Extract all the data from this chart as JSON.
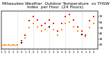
{
  "title": "Milwaukee Weather  Outdoor Temperature",
  "subtitle": "vs THSW Index  per Hour  (24 Hours)",
  "background_color": "#ffffff",
  "grid_color": "#bbbbbb",
  "temp_color": "#ff8800",
  "thsw_color": "#ff0000",
  "black_color": "#000000",
  "ylim": [
    20,
    88
  ],
  "xlim": [
    0,
    24
  ],
  "ytick_vals": [
    78,
    68,
    58,
    48,
    38,
    28
  ],
  "dashed_x": [
    4,
    8,
    12,
    16,
    20,
    24
  ],
  "flat_line_x": [
    0,
    4.0
  ],
  "flat_line_y": [
    28,
    28
  ],
  "temp_data_x": [
    0,
    1,
    2,
    3,
    4,
    5,
    6,
    7,
    8,
    9,
    10,
    11,
    12,
    13,
    14,
    15,
    16,
    17,
    18,
    19,
    20,
    21,
    22,
    23
  ],
  "temp_data_y": [
    28,
    28,
    28,
    28,
    28,
    32,
    40,
    58,
    65,
    60,
    52,
    55,
    60,
    55,
    45,
    55,
    65,
    68,
    60,
    52,
    46,
    42,
    58,
    65
  ],
  "thsw_data_x": [
    5,
    6,
    7,
    8,
    9,
    10,
    11,
    12,
    13,
    14,
    15,
    16,
    17,
    18,
    19,
    20,
    21,
    22,
    23
  ],
  "thsw_data_y": [
    35,
    45,
    70,
    78,
    72,
    62,
    65,
    72,
    65,
    52,
    65,
    78,
    82,
    72,
    60,
    52,
    45,
    70,
    78
  ],
  "black_data_x": [
    5,
    12,
    20
  ],
  "black_data_y": [
    32,
    60,
    46
  ],
  "xtick_positions": [
    0,
    1,
    2,
    3,
    4,
    5,
    6,
    7,
    8,
    9,
    10,
    11,
    12,
    13,
    14,
    15,
    16,
    17,
    18,
    19,
    20,
    21,
    22,
    23
  ],
  "xtick_labels": [
    "1",
    "3",
    "5",
    "1",
    "3",
    "5",
    "1",
    "3",
    "5",
    "1",
    "3",
    "5",
    "1",
    "3",
    "5",
    "1",
    "3",
    "5",
    "1",
    "3",
    "5",
    "1",
    "3",
    "5"
  ],
  "scatter_size": 2.5,
  "title_fontsize": 4.2,
  "tick_fontsize": 3.0,
  "line_width": 0.7
}
